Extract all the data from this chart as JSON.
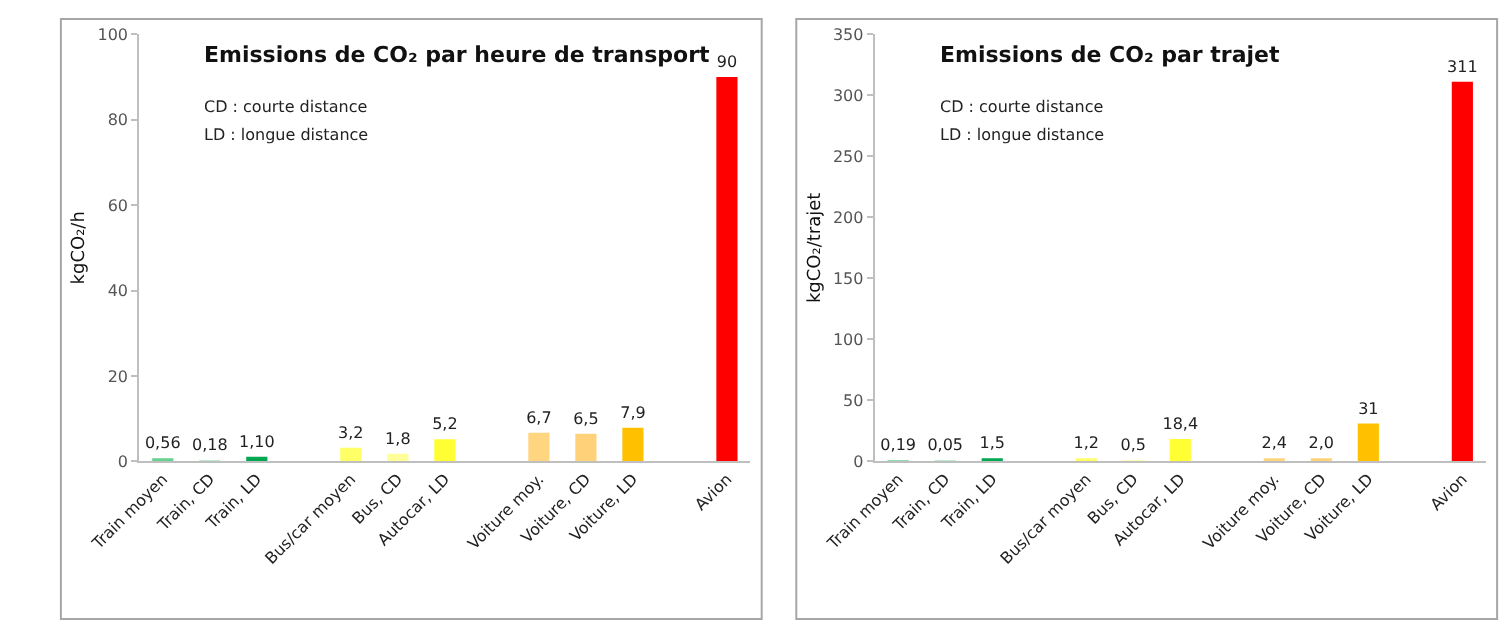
{
  "chart_data": [
    {
      "type": "bar",
      "title": "Emissions de CO₂ par heure de transport",
      "ylabel": "kgCO₂/h",
      "categories": [
        "Train moyen",
        "Train, CD",
        "Train, LD",
        null,
        "Bus/car moyen",
        "Bus, CD",
        "Autocar, LD",
        null,
        "Voiture moy.",
        "Voiture, CD",
        "Voiture, LD",
        null,
        "Avion"
      ],
      "values": [
        0.56,
        0.18,
        1.1,
        null,
        3.2,
        1.8,
        5.2,
        null,
        6.7,
        6.5,
        7.9,
        null,
        90
      ],
      "value_labels": [
        "0,56",
        "0,18",
        "1,10",
        null,
        "3,2",
        "1,8",
        "5,2",
        null,
        "6,7",
        "6,5",
        "7,9",
        null,
        "90"
      ],
      "colors": [
        "#66d08f",
        "#a6e3bd",
        "#00a650",
        "#ffffff",
        "#ffff66",
        "#ffff99",
        "#ffff33",
        "#ffffff",
        "#ffd580",
        "#ffd27a",
        "#ffc000",
        "#ffffff",
        "#ff0000"
      ],
      "ylim": [
        0,
        100
      ],
      "yticks": [
        0,
        20,
        40,
        60,
        80,
        100
      ],
      "grid": false,
      "annotations": [
        "CD : courte distance",
        "LD : longue distance"
      ]
    },
    {
      "type": "bar",
      "title": "Emissions de CO₂ par trajet",
      "ylabel": "kgCO₂/trajet",
      "categories": [
        "Train moyen",
        "Train, CD",
        "Train, LD",
        null,
        "Bus/car moyen",
        "Bus, CD",
        "Autocar, LD",
        null,
        "Voiture moy.",
        "Voiture, CD",
        "Voiture, LD",
        null,
        "Avion"
      ],
      "values": [
        0.19,
        0.05,
        1.5,
        null,
        1.2,
        0.5,
        18.4,
        null,
        2.4,
        2.0,
        31,
        null,
        311
      ],
      "value_labels": [
        "0,19",
        "0,05",
        "1,5",
        null,
        "1,2",
        "0,5",
        "18,4",
        null,
        "2,4",
        "2,0",
        "31",
        null,
        "311"
      ],
      "colors": [
        "#66d08f",
        "#a6e3bd",
        "#00a650",
        "#ffffff",
        "#ffff66",
        "#ffff99",
        "#ffff33",
        "#ffffff",
        "#ffd580",
        "#ffd27a",
        "#ffc000",
        "#ffffff",
        "#ff0000"
      ],
      "ylim": [
        0,
        350
      ],
      "yticks": [
        0,
        50,
        100,
        150,
        200,
        250,
        300,
        350
      ],
      "grid": false,
      "annotations": [
        "CD : courte distance",
        "LD : longue distance"
      ]
    }
  ]
}
